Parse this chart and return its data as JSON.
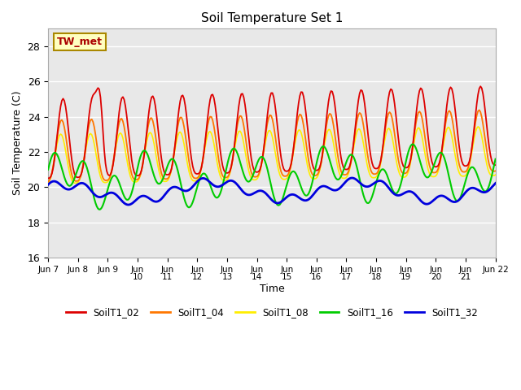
{
  "title": "Soil Temperature Set 1",
  "xlabel": "Time",
  "ylabel": "Soil Temperature (C)",
  "ylim": [
    16,
    29
  ],
  "yticks": [
    16,
    18,
    20,
    22,
    24,
    26,
    28
  ],
  "annotation_text": "TW_met",
  "annotation_color": "#aa0000",
  "annotation_bg": "#ffffc0",
  "annotation_border": "#aa8800",
  "background_color": "#e8e8e8",
  "series_colors": {
    "SoilT1_02": "#dd0000",
    "SoilT1_04": "#ff7700",
    "SoilT1_08": "#ffee00",
    "SoilT1_16": "#00cc00",
    "SoilT1_32": "#0000dd"
  },
  "xtick_labels": [
    "Jun 7",
    "Jun 8",
    "Jun 9",
    "Jun\n10",
    "Jun\n11",
    "Jun\n12",
    "Jun\n13",
    "Jun\n14",
    "Jun\n15",
    "Jun\n16",
    "Jun\n17",
    "Jun\n18",
    "Jun\n19",
    "Jun\n20",
    "Jun\n21",
    "Jun 22"
  ]
}
